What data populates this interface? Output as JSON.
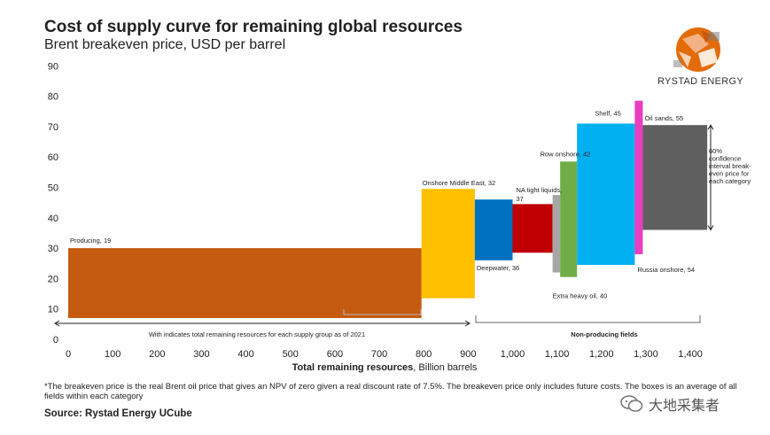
{
  "header": {
    "title": "Cost of supply curve for remaining global resources",
    "subtitle": "Brent breakeven price, USD per barrel"
  },
  "logo": {
    "text": "RYSTAD ENERGY"
  },
  "footnote": "*The breakeven price is the real Brent oil price that gives an NPV of zero given a real discount rate of 7.5%. The breakeven price only includes future costs. The boxes is an average of all fields within each category",
  "source": "Source: Rystad Energy UCube",
  "watermark": {
    "text": "大地采集者"
  },
  "chart_data": {
    "type": "bar",
    "title": "Cost of supply curve for remaining global resources",
    "subtitle": "Brent breakeven price, USD per barrel",
    "xlabel_bold": "Total remaining resources",
    "xlabel_rest": ", Billion barrels",
    "xlim": [
      0,
      1450
    ],
    "ylim": [
      0,
      90
    ],
    "x_ticks": [
      0,
      100,
      200,
      300,
      400,
      500,
      600,
      700,
      800,
      900,
      1000,
      1100,
      1200,
      1300,
      1400
    ],
    "x_tick_labels": [
      "0",
      "100",
      "200",
      "300",
      "400",
      "500",
      "600",
      "700",
      "800",
      "900",
      "1,000",
      "1,100",
      "1,200",
      "1,300",
      "1,400"
    ],
    "y_ticks": [
      0,
      10,
      20,
      30,
      40,
      50,
      60,
      70,
      80,
      90
    ],
    "grid": false,
    "colors": {
      "producing": "#c55a11",
      "onshore_me": "#ffc000",
      "deepwater": "#0070c0",
      "na_tight": "#c00000",
      "extra_heavy": "#a6a6a6",
      "row_onshore": "#70ad47",
      "shelf": "#00b0f0",
      "russia_onshore": "#e83ec1",
      "oil_sands": "#5f5f5f"
    },
    "segments": [
      {
        "name": "Producing",
        "label": "Producing, 19",
        "x_start": 0,
        "x_end": 795,
        "low": 7,
        "high": 30,
        "color_key": "producing"
      },
      {
        "name": "Onshore Middle East",
        "label": "Onshore Middle East, 32",
        "x_start": 795,
        "x_end": 915,
        "low": 13.5,
        "high": 49.5,
        "color_key": "onshore_me"
      },
      {
        "name": "Deepwater",
        "label": "Deepwater, 36",
        "x_start": 915,
        "x_end": 1000,
        "low": 26,
        "high": 46,
        "color_key": "deepwater"
      },
      {
        "name": "NA tight liquids",
        "label": "NA tight liquids, 37",
        "x_start": 1000,
        "x_end": 1090,
        "low": 28.5,
        "high": 44.5,
        "color_key": "na_tight"
      },
      {
        "name": "Extra heavy oil",
        "label": "Extra heavy oil, 40",
        "x_start": 1090,
        "x_end": 1107,
        "low": 22,
        "high": 47.5,
        "color_key": "extra_heavy"
      },
      {
        "name": "Row onshore",
        "label": "Row onshore, 42",
        "x_start": 1107,
        "x_end": 1145,
        "low": 20.5,
        "high": 58.5,
        "color_key": "row_onshore"
      },
      {
        "name": "Shelf",
        "label": "Shelf, 45",
        "x_start": 1145,
        "x_end": 1275,
        "low": 24.5,
        "high": 71,
        "color_key": "shelf"
      },
      {
        "name": "Russia onshore",
        "label": "Russia onshore, 54",
        "x_start": 1275,
        "x_end": 1293,
        "low": 28,
        "high": 78.5,
        "color_key": "russia_onshore"
      },
      {
        "name": "Oil sands",
        "label": "Oil sands, 55",
        "x_start": 1293,
        "x_end": 1438,
        "low": 36,
        "high": 70.5,
        "color_key": "oil_sands"
      }
    ],
    "annotations": {
      "confidence_note": [
        "60%",
        "confidence",
        "interval break-",
        "even price for",
        "each category"
      ],
      "resources_note": "With indicates total remaining resources for each supply group as of 2021",
      "non_producing_note": "Non-producing fields"
    }
  }
}
